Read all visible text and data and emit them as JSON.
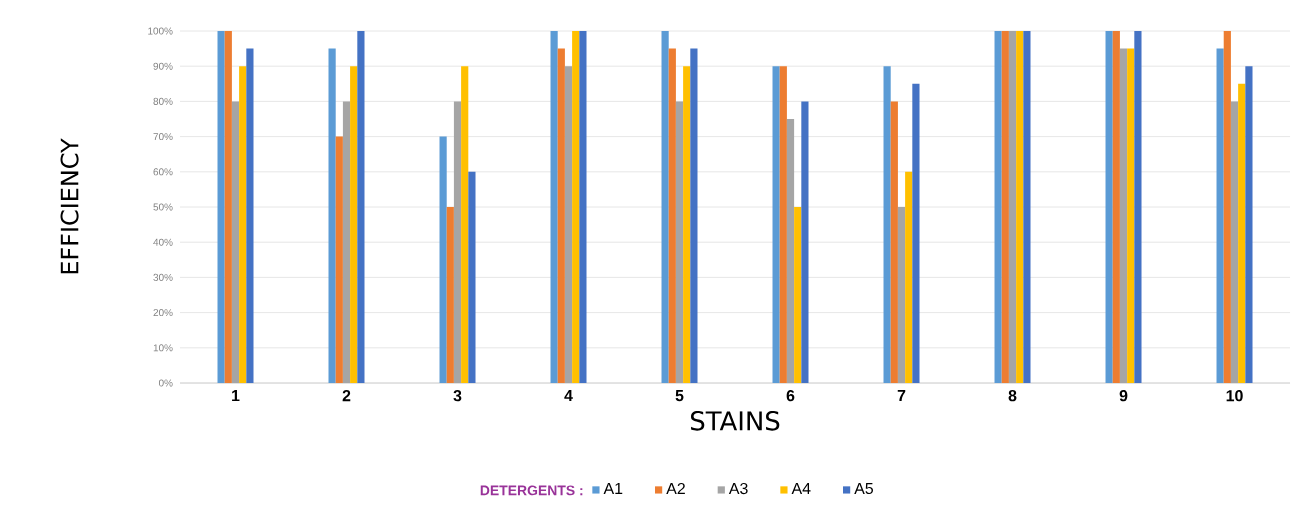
{
  "chart_data": {
    "type": "bar",
    "xlabel": "STAINS",
    "ylabel": "EFFICIENCY",
    "legend_title": "DETERGENTS :",
    "categories": [
      "1",
      "2",
      "3",
      "4",
      "5",
      "6",
      "7",
      "8",
      "9",
      "10"
    ],
    "series": [
      {
        "name": "A1",
        "color": "#5b9bd5",
        "values": [
          100,
          95,
          70,
          100,
          100,
          90,
          90,
          100,
          100,
          95
        ]
      },
      {
        "name": "A2",
        "color": "#ed7d31",
        "values": [
          100,
          70,
          50,
          95,
          95,
          90,
          80,
          100,
          100,
          100
        ]
      },
      {
        "name": "A3",
        "color": "#a5a5a5",
        "values": [
          80,
          80,
          80,
          90,
          80,
          75,
          50,
          100,
          95,
          80
        ]
      },
      {
        "name": "A4",
        "color": "#ffc000",
        "values": [
          90,
          90,
          90,
          100,
          90,
          50,
          60,
          100,
          95,
          85
        ]
      },
      {
        "name": "A5",
        "color": "#4472c4",
        "values": [
          95,
          100,
          60,
          100,
          95,
          80,
          85,
          100,
          100,
          90
        ]
      }
    ],
    "ylim": [
      0,
      100
    ],
    "yticks": [
      {
        "value": 0,
        "label": "0%"
      },
      {
        "value": 10,
        "label": "10%"
      },
      {
        "value": 20,
        "label": "20%"
      },
      {
        "value": 30,
        "label": "30%"
      },
      {
        "value": 40,
        "label": "40%"
      },
      {
        "value": 50,
        "label": "50%"
      },
      {
        "value": 60,
        "label": "60%"
      },
      {
        "value": 70,
        "label": "70%"
      },
      {
        "value": 80,
        "label": "80%"
      },
      {
        "value": 90,
        "label": "90%"
      },
      {
        "value": 100,
        "label": "100%"
      }
    ],
    "grid": "y",
    "legend": "bottom"
  }
}
